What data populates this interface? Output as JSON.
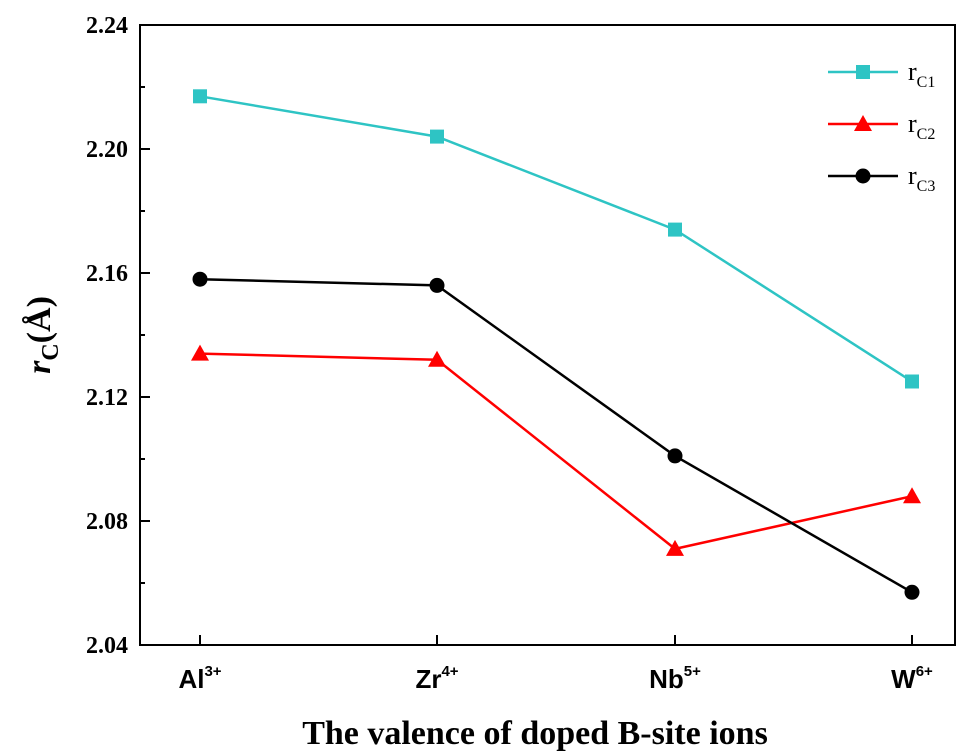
{
  "chart_data": {
    "type": "line",
    "categories": [
      {
        "base": "Al",
        "sup": "3+"
      },
      {
        "base": "Zr",
        "sup": "4+"
      },
      {
        "base": "Nb",
        "sup": "5+"
      },
      {
        "base": "W",
        "sup": "6+"
      }
    ],
    "xlabel": "The valence of  doped B-site ions",
    "ylabel": {
      "italic": "r",
      "sub": "C",
      "rest": "(Å)"
    },
    "ylim": [
      2.04,
      2.24
    ],
    "yticks": [
      "2.04",
      "2.08",
      "2.12",
      "2.16",
      "2.20",
      "2.24"
    ],
    "legend_position": "top-right",
    "series": [
      {
        "name": {
          "base": "r",
          "sub": "C1"
        },
        "color": "#2ec4c4",
        "marker": "square",
        "values": [
          2.217,
          2.204,
          2.174,
          2.125
        ]
      },
      {
        "name": {
          "base": "r",
          "sub": "C2"
        },
        "color": "#ff0000",
        "marker": "triangle",
        "values": [
          2.134,
          2.132,
          2.071,
          2.088
        ]
      },
      {
        "name": {
          "base": "r",
          "sub": "C3"
        },
        "color": "#000000",
        "marker": "circle",
        "values": [
          2.158,
          2.156,
          2.101,
          2.057
        ]
      }
    ]
  }
}
